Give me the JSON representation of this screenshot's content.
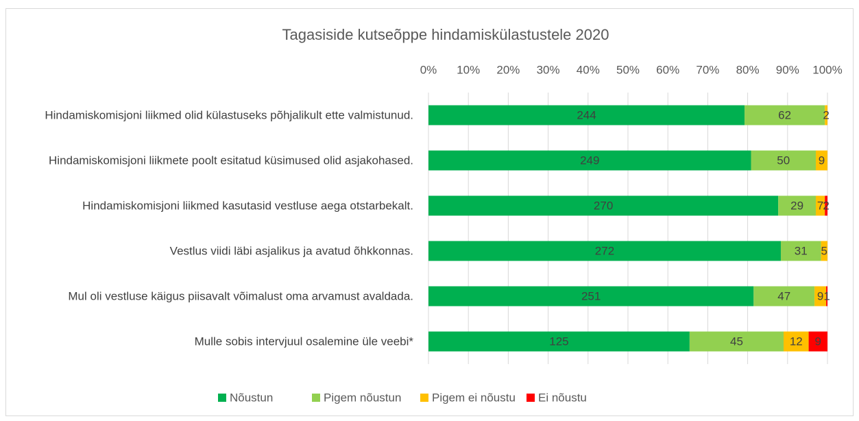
{
  "chart_data": {
    "type": "bar100h",
    "title": "Tagasiside kutseõppe hindamiskülastustele 2020",
    "categories": [
      "Hindamiskomisjoni liikmed olid külastuseks põhjalikult ette valmistunud.",
      "Hindamiskomisjoni liikmete poolt esitatud küsimused olid asjakohased.",
      "Hindamiskomisjoni liikmed kasutasid vestluse aega otstarbekalt.",
      "Vestlus viidi läbi asjalikus ja avatud õhkkonnas.",
      "Mul oli vestluse käigus piisavalt võimalust oma arvamust avaldada.",
      "Mulle sobis intervjuul osalemine üle veebi*"
    ],
    "series": [
      {
        "name": "Nõustun",
        "color": "#00b050",
        "values": [
          244,
          249,
          270,
          272,
          251,
          125
        ]
      },
      {
        "name": "Pigem nõustun",
        "color": "#92d050",
        "values": [
          62,
          50,
          29,
          31,
          47,
          45
        ]
      },
      {
        "name": "Pigem ei nõustu",
        "color": "#ffc000",
        "values": [
          2,
          9,
          7,
          5,
          9,
          12
        ]
      },
      {
        "name": "Ei nõustu",
        "color": "#ff0000",
        "values": [
          null,
          null,
          2,
          null,
          1,
          9
        ]
      }
    ],
    "xlim": [
      0,
      100
    ],
    "xticks": [
      {
        "value": 0,
        "label": "0%"
      },
      {
        "value": 10,
        "label": "10%"
      },
      {
        "value": 20,
        "label": "20%"
      },
      {
        "value": 30,
        "label": "30%"
      },
      {
        "value": 40,
        "label": "40%"
      },
      {
        "value": 50,
        "label": "50%"
      },
      {
        "value": 60,
        "label": "60%"
      },
      {
        "value": 70,
        "label": "70%"
      },
      {
        "value": 80,
        "label": "80%"
      },
      {
        "value": 90,
        "label": "90%"
      },
      {
        "value": 100,
        "label": "100%"
      }
    ],
    "grid": true,
    "legend": "bottom"
  }
}
